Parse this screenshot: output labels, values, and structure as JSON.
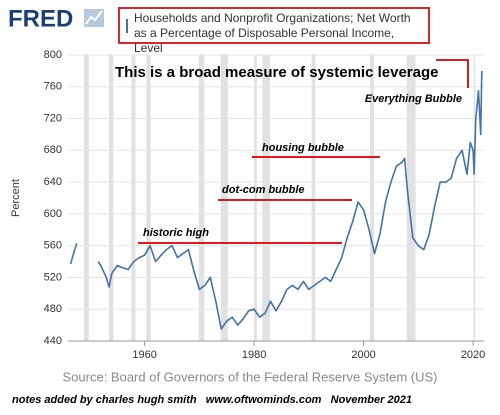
{
  "logo": "FRED",
  "notes": "notes added by charles hugh smith   www.oftwominds.com   November 2021",
  "chart_data": {
    "type": "line",
    "legend": "Households and Nonprofit Organizations; Net Worth as a Percentage of Disposable Personal Income, Level",
    "y_label": "Percent",
    "source": "Source: Board of Governors of the Federal Reserve System (US)",
    "annotations": [
      "This is a broad measure of systemic leverage",
      "historic high",
      "dot-com bubble",
      "housing bubble",
      "Everything Bubble"
    ],
    "x": [
      1946.5,
      1947,
      1947.6,
      1949,
      1951.5,
      1952,
      1953,
      1953.5,
      1954,
      1955,
      1956,
      1957,
      1958,
      1959,
      1960,
      1961,
      1962,
      1963,
      1964,
      1965,
      1966,
      1967,
      1968,
      1969,
      1970,
      1971,
      1972,
      1973,
      1974,
      1975,
      1976,
      1977,
      1978,
      1979,
      1980,
      1981,
      1982,
      1983,
      1984,
      1985,
      1986,
      1987,
      1988,
      1989,
      1990,
      1991,
      1992,
      1993,
      1994,
      1995,
      1996,
      1997,
      1998,
      1999,
      2000,
      2001,
      2002,
      2003,
      2004,
      2005,
      2006,
      2007,
      2007.5,
      2008,
      2009,
      2010,
      2011,
      2012,
      2013,
      2014,
      2015,
      2016,
      2017,
      2018,
      2018.9,
      2019.5,
      2020,
      2020.2,
      2020.5,
      2021,
      2021.4,
      2021.6
    ],
    "series": [
      {
        "name": "Households and Nonprofit Organizations; Net Worth as a Percentage of Disposable Personal Income, Level",
        "color": "#4572a7",
        "values": [
          537,
          550,
          563,
          null,
          540,
          535,
          520,
          508,
          525,
          535,
          532,
          530,
          540,
          545,
          548,
          560,
          540,
          548,
          555,
          560,
          545,
          550,
          555,
          528,
          505,
          510,
          520,
          490,
          455,
          465,
          470,
          460,
          468,
          478,
          480,
          470,
          475,
          490,
          478,
          490,
          505,
          510,
          505,
          515,
          505,
          510,
          515,
          520,
          515,
          530,
          545,
          570,
          590,
          615,
          605,
          580,
          550,
          575,
          615,
          640,
          660,
          665,
          670,
          630,
          570,
          560,
          555,
          575,
          610,
          640,
          640,
          645,
          670,
          680,
          650,
          690,
          680,
          650,
          720,
          755,
          700,
          780
        ]
      }
    ],
    "recessions": [
      [
        1948.9,
        1949.8
      ],
      [
        1953.5,
        1954.3
      ],
      [
        1957.6,
        1958.3
      ],
      [
        1960.3,
        1961.1
      ],
      [
        1969.9,
        1970.9
      ],
      [
        1973.9,
        1975.2
      ],
      [
        1980,
        1980.5
      ],
      [
        1981.5,
        1982.9
      ],
      [
        1990.5,
        1991.2
      ],
      [
        2001.2,
        2001.9
      ],
      [
        2007.9,
        2009.5
      ],
      [
        2020.1,
        2020.4
      ]
    ],
    "recession_color": "#e1e1e1",
    "xlim": [
      1946,
      2022
    ],
    "ylim": [
      440,
      800
    ],
    "xticks": [
      1960,
      1980,
      2000,
      2020
    ],
    "yticks": [
      440,
      480,
      520,
      560,
      600,
      640,
      680,
      720,
      760,
      800
    ],
    "grid": true
  }
}
